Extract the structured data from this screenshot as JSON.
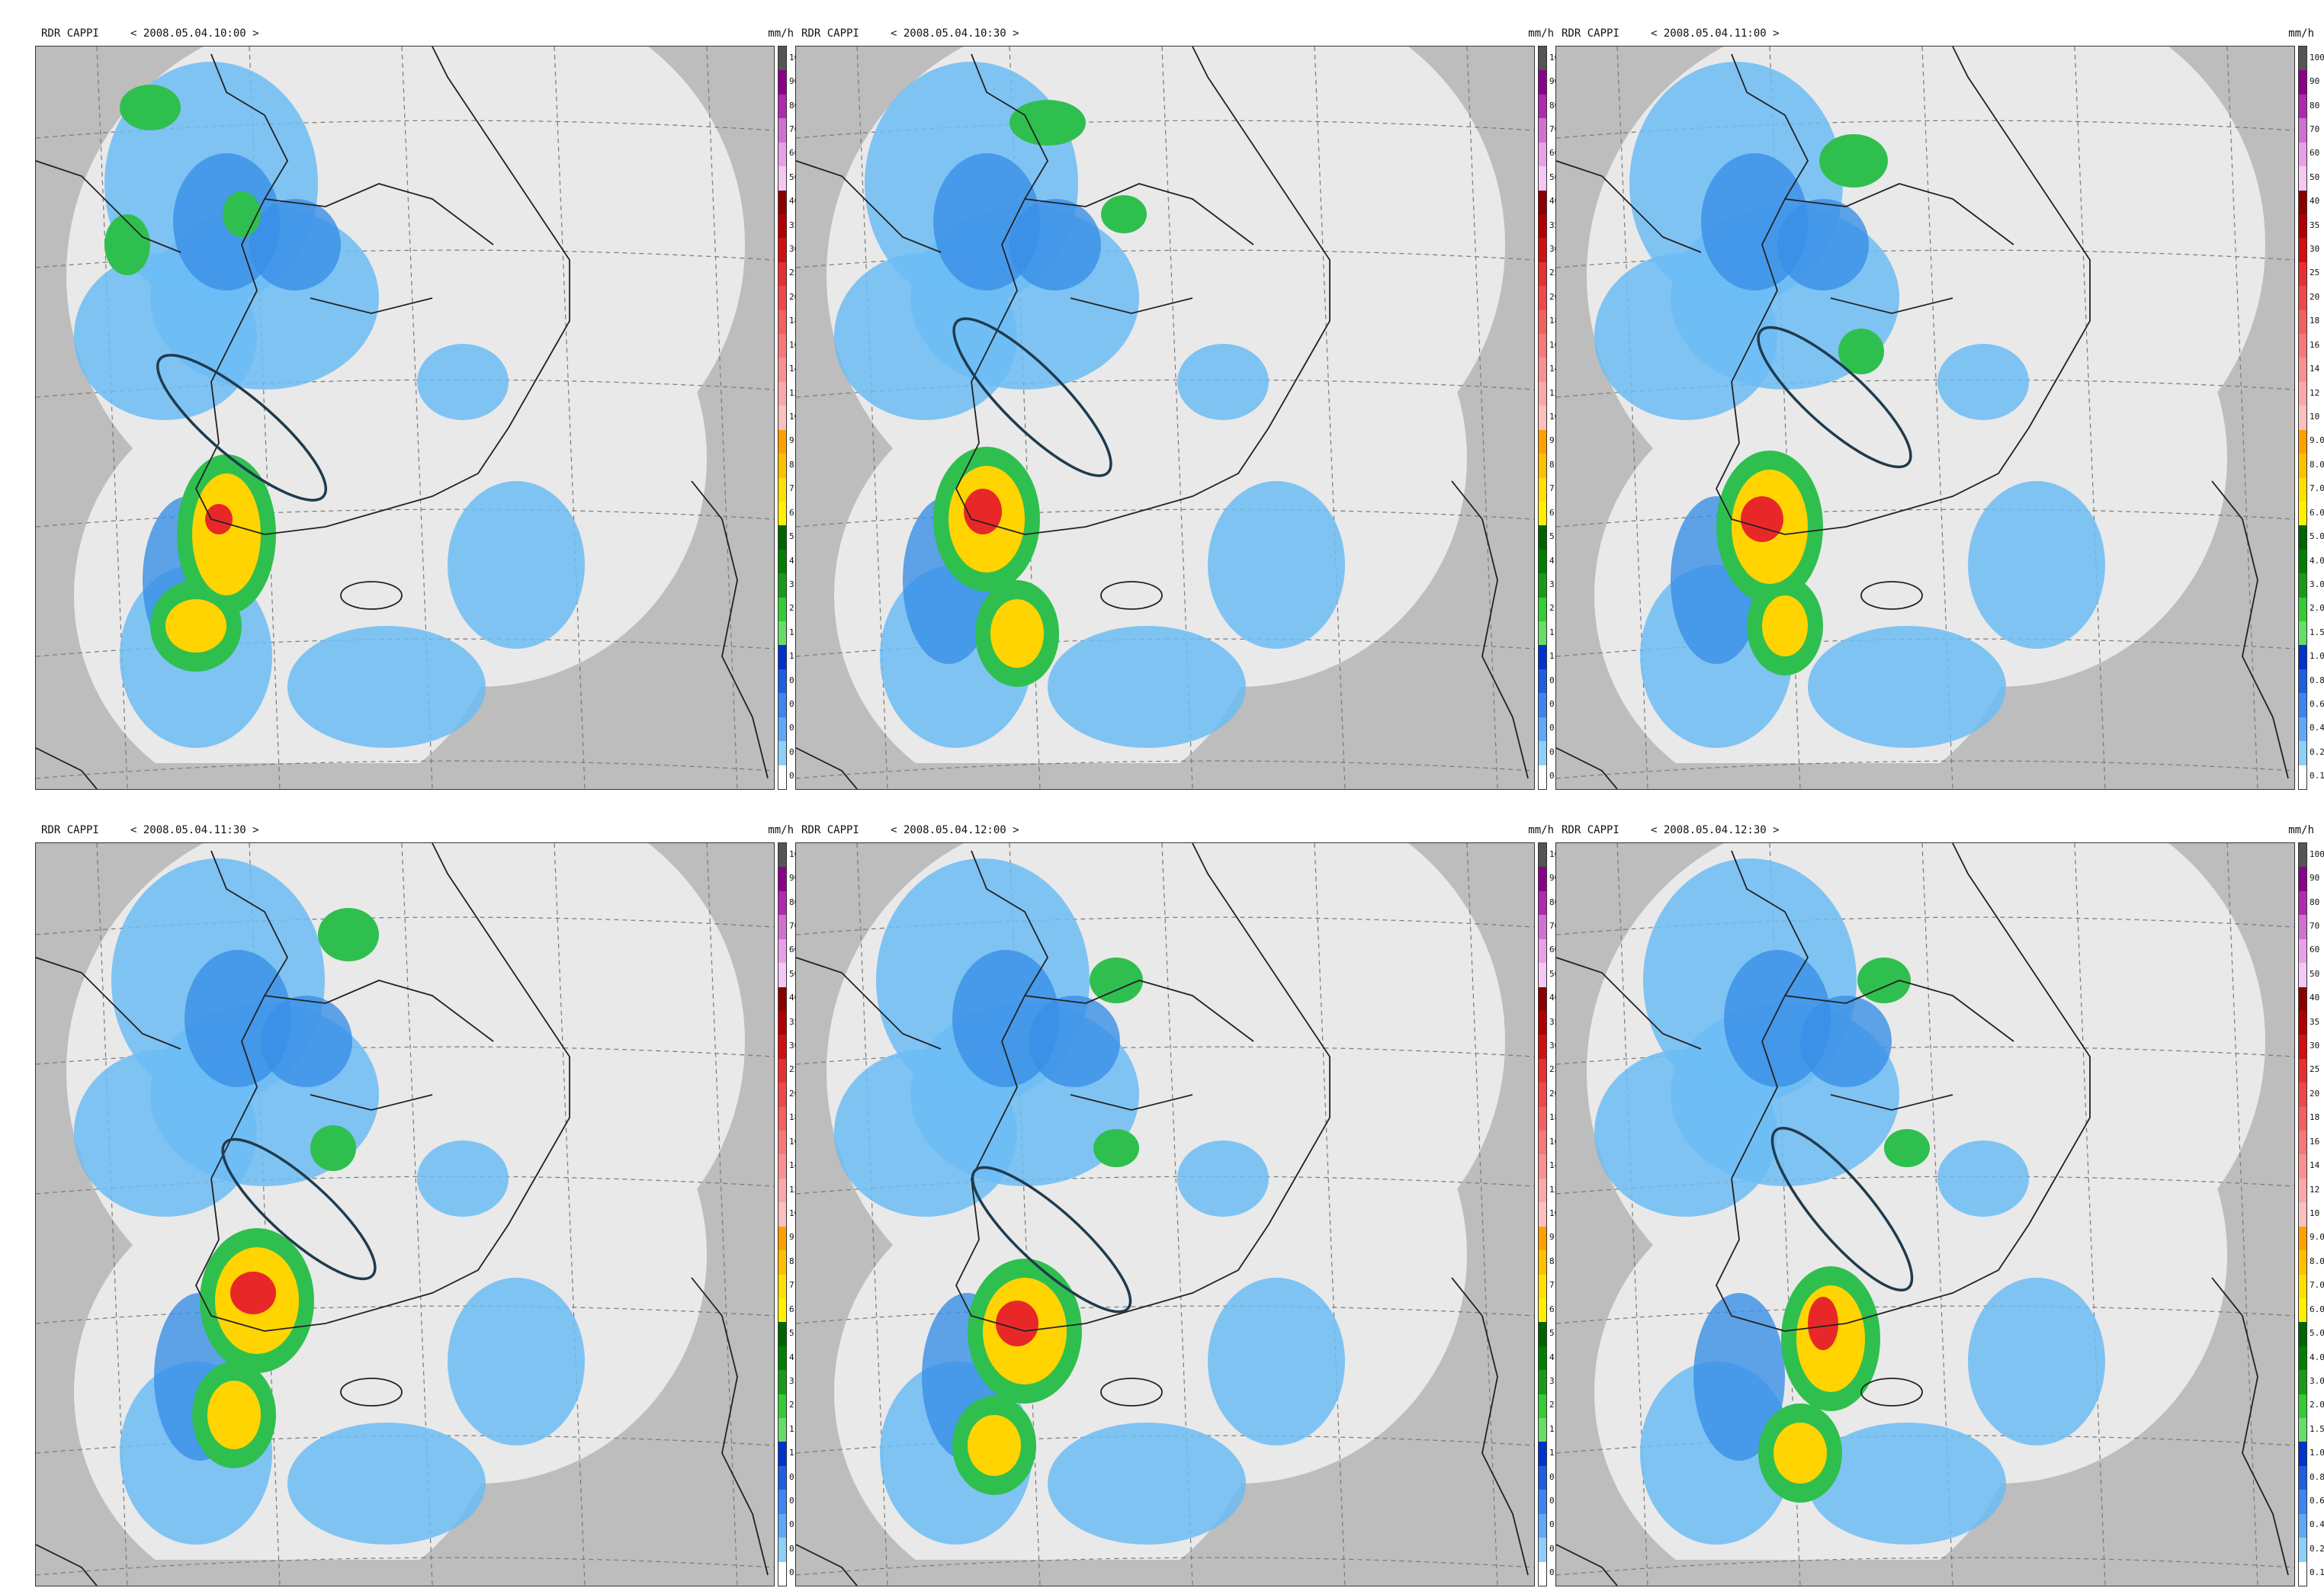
{
  "panels": [
    {
      "product": "RDR CAPPI",
      "timestamp": "< 2008.05.04.10:00 >",
      "unit": "mm/h"
    },
    {
      "product": "RDR CAPPI",
      "timestamp": "< 2008.05.04.10:30 >",
      "unit": "mm/h"
    },
    {
      "product": "RDR CAPPI",
      "timestamp": "< 2008.05.04.11:00 >",
      "unit": "mm/h"
    },
    {
      "product": "RDR CAPPI",
      "timestamp": "< 2008.05.04.11:30 >",
      "unit": "mm/h"
    },
    {
      "product": "RDR CAPPI",
      "timestamp": "< 2008.05.04.12:00 >",
      "unit": "mm/h"
    },
    {
      "product": "RDR CAPPI",
      "timestamp": "< 2008.05.04.12:30 >",
      "unit": "mm/h"
    }
  ],
  "legend": {
    "labels": [
      "100",
      "90",
      "80",
      "70",
      "60",
      "50",
      "40",
      "35",
      "30",
      "25",
      "20",
      "18",
      "16",
      "14",
      "12",
      "10",
      "9.0",
      "8.0",
      "7.0",
      "6.0",
      "5.0",
      "4.0",
      "3.0",
      "2.0",
      "1.5",
      "1.0",
      "0.8",
      "0.6",
      "0.4",
      "0.2",
      "0.1"
    ],
    "colors": [
      "#555555",
      "#8b008b",
      "#b02ab0",
      "#d070d0",
      "#e9a0e9",
      "#f4c8f4",
      "#8b0000",
      "#b00000",
      "#d01010",
      "#e83030",
      "#f04848",
      "#f46060",
      "#f87878",
      "#fa9090",
      "#fca8a8",
      "#fdc0c0",
      "#ffa000",
      "#ffc000",
      "#ffe000",
      "#fff000",
      "#006400",
      "#008000",
      "#1a9a1a",
      "#33cc33",
      "#66dd66",
      "#0033cc",
      "#1e5fe0",
      "#3d85f0",
      "#5fa8f8",
      "#8ccff9",
      "#ffffff"
    ]
  },
  "colors": {
    "no_data": "#bdbdbd",
    "radar_coverage": "#e9e9e9",
    "light_rain": "#6cbcf5",
    "medium_rain": "#3a8fe6",
    "moderate": "#2fbf4f",
    "heavy": "#ffd400",
    "very_heavy": "#e82828",
    "ellipse": "#1f3b4d",
    "coast": "#222222"
  }
}
